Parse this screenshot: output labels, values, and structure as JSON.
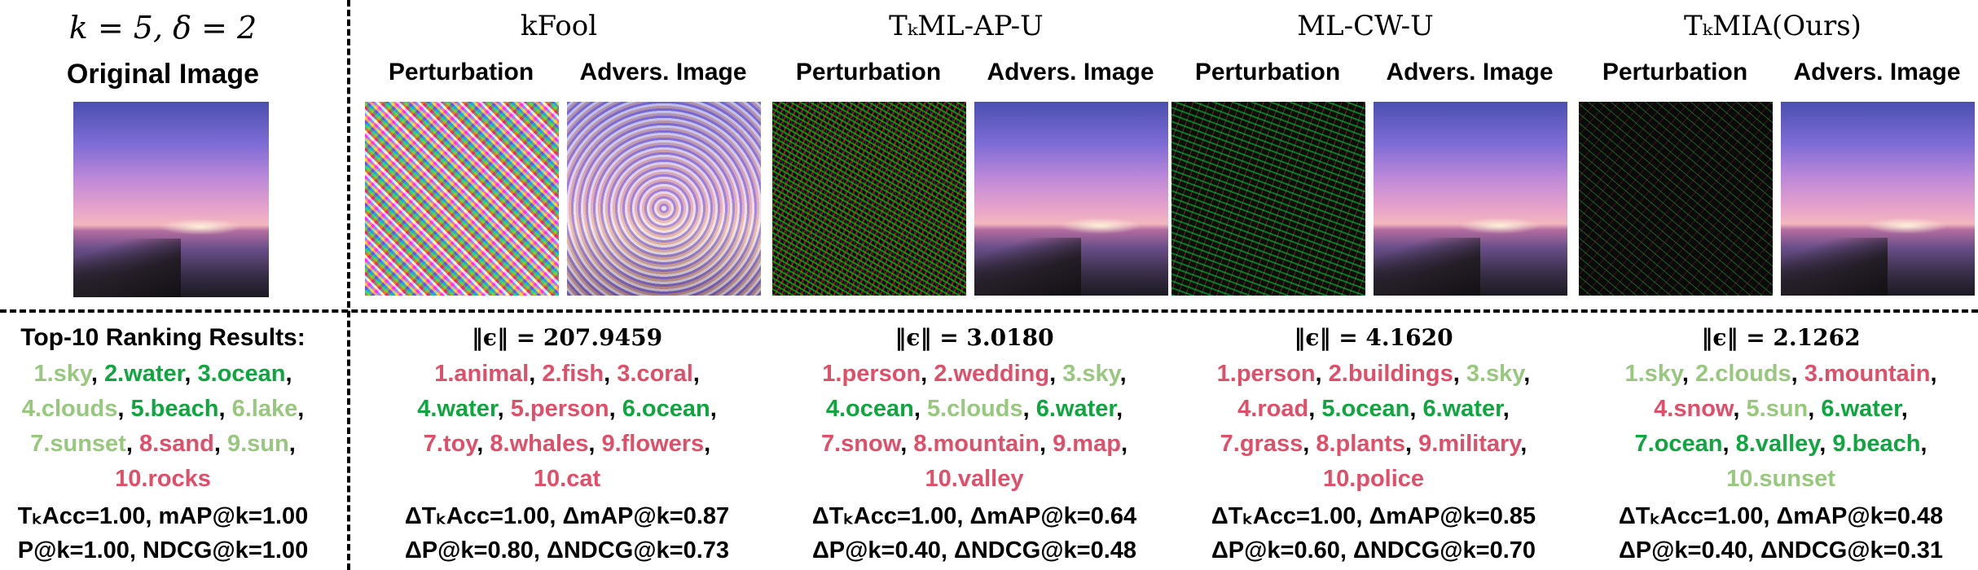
{
  "left": {
    "param": "k = 5, δ = 2",
    "original_title": "Original Image",
    "ranking_title": "Top-10 Ranking Results:",
    "ranking": [
      {
        "text": "1.sky",
        "status": "near"
      },
      {
        "text": "2.water",
        "status": "hit"
      },
      {
        "text": "3.ocean",
        "status": "hit"
      },
      {
        "text": "4.clouds",
        "status": "near"
      },
      {
        "text": "5.beach",
        "status": "hit"
      },
      {
        "text": "6.lake",
        "status": "near"
      },
      {
        "text": "7.sunset",
        "status": "near"
      },
      {
        "text": "8.sand",
        "status": "miss"
      },
      {
        "text": "9.sun",
        "status": "near"
      },
      {
        "text": "10.rocks",
        "status": "miss"
      }
    ],
    "metrics_line1": "TₖAcc=1.00, mAP@k=1.00",
    "metrics_line2": "P@k=1.00, NDCG@k=1.00"
  },
  "labels": {
    "perturbation": "Perturbation",
    "adversarial": "Advers. Image"
  },
  "methods": [
    {
      "name": "kFool",
      "norm": "‖ϵ‖ = 207.9459",
      "ranking": [
        {
          "text": "1.animal",
          "status": "miss"
        },
        {
          "text": "2.fish",
          "status": "miss"
        },
        {
          "text": "3.coral",
          "status": "miss"
        },
        {
          "text": "4.water",
          "status": "hit"
        },
        {
          "text": "5.person",
          "status": "miss"
        },
        {
          "text": "6.ocean",
          "status": "hit"
        },
        {
          "text": "7.toy",
          "status": "miss"
        },
        {
          "text": "8.whales",
          "status": "miss"
        },
        {
          "text": "9.flowers",
          "status": "miss"
        },
        {
          "text": "10.cat",
          "status": "miss"
        }
      ],
      "metrics_line1": "ΔTₖAcc=1.00, ΔmAP@k=0.87",
      "metrics_line2": "ΔP@k=0.80, ΔNDCG@k=0.73"
    },
    {
      "name": "TₖML-AP-U",
      "norm": "‖ϵ‖ = 3.0180",
      "ranking": [
        {
          "text": "1.person",
          "status": "miss"
        },
        {
          "text": "2.wedding",
          "status": "miss"
        },
        {
          "text": "3.sky",
          "status": "near"
        },
        {
          "text": "4.ocean",
          "status": "hit"
        },
        {
          "text": "5.clouds",
          "status": "near"
        },
        {
          "text": "6.water",
          "status": "hit"
        },
        {
          "text": "7.snow",
          "status": "miss"
        },
        {
          "text": "8.mountain",
          "status": "miss"
        },
        {
          "text": "9.map",
          "status": "miss"
        },
        {
          "text": "10.valley",
          "status": "miss"
        }
      ],
      "metrics_line1": "ΔTₖAcc=1.00, ΔmAP@k=0.64",
      "metrics_line2": "ΔP@k=0.40, ΔNDCG@k=0.48"
    },
    {
      "name": "ML-CW-U",
      "norm": "‖ϵ‖ = 4.1620",
      "ranking": [
        {
          "text": "1.person",
          "status": "miss"
        },
        {
          "text": "2.buildings",
          "status": "miss"
        },
        {
          "text": "3.sky",
          "status": "near"
        },
        {
          "text": "4.road",
          "status": "miss"
        },
        {
          "text": "5.ocean",
          "status": "hit"
        },
        {
          "text": "6.water",
          "status": "hit"
        },
        {
          "text": "7.grass",
          "status": "miss"
        },
        {
          "text": "8.plants",
          "status": "miss"
        },
        {
          "text": "9.military",
          "status": "miss"
        },
        {
          "text": "10.police",
          "status": "miss"
        }
      ],
      "metrics_line1": "ΔTₖAcc=1.00, ΔmAP@k=0.85",
      "metrics_line2": "ΔP@k=0.60, ΔNDCG@k=0.70"
    },
    {
      "name": "TₖMIA(Ours)",
      "norm": "‖ϵ‖ = 2.1262",
      "ranking": [
        {
          "text": "1.sky",
          "status": "near"
        },
        {
          "text": "2.clouds",
          "status": "near"
        },
        {
          "text": "3.mountain",
          "status": "miss"
        },
        {
          "text": "4.snow",
          "status": "miss"
        },
        {
          "text": "5.sun",
          "status": "near"
        },
        {
          "text": "6.water",
          "status": "hit"
        },
        {
          "text": "7.ocean",
          "status": "hit"
        },
        {
          "text": "8.valley",
          "status": "hit"
        },
        {
          "text": "9.beach",
          "status": "hit"
        },
        {
          "text": "10.sunset",
          "status": "near"
        }
      ],
      "metrics_line1": "ΔTₖAcc=1.00, ΔmAP@k=0.48",
      "metrics_line2": "ΔP@k=0.40, ΔNDCG@k=0.31"
    }
  ],
  "colors": {
    "hit": "#0fa53f",
    "near": "#97c87d",
    "miss": "#e04f6a"
  }
}
